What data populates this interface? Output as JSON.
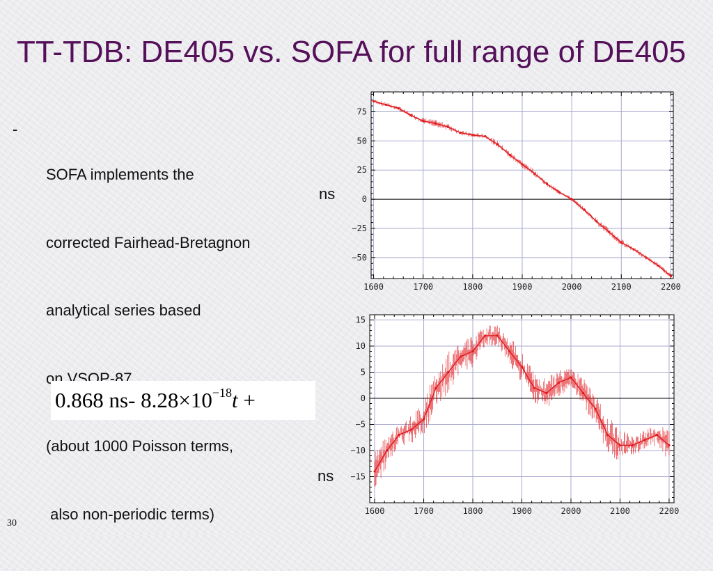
{
  "slide": {
    "title": "TT-TDB: DE405 vs. SOFA for full range of DE405",
    "bullet_marker": "-",
    "bullet_lines": [
      "SOFA implements the",
      "corrected Fairhead-Bretagnon",
      "analytical series based",
      "on VSOP-87",
      "(about 1000 Poisson terms,",
      " also non-periodic terms)"
    ],
    "formula": {
      "coef1": "0.868",
      "unit": "ns",
      "minus": "-",
      "coef2": "8.28",
      "times": "×10",
      "exponent": "−18",
      "variable": "t",
      "plus": "+"
    },
    "slide_number": "30"
  },
  "colors": {
    "title": "#55105a",
    "series": "#e0181d",
    "grid": "#a9a9cf",
    "plot_bg": "#ffffff"
  },
  "chart_data": [
    {
      "type": "line",
      "ylabel": "ns",
      "xlim": [
        1595,
        2205
      ],
      "ylim": [
        -68,
        92
      ],
      "x_ticks": [
        1600,
        1700,
        1800,
        1900,
        2000,
        2100,
        2200
      ],
      "y_ticks": [
        75,
        50,
        25,
        0,
        -25,
        -50
      ],
      "y_tick_labels": [
        "75",
        "50",
        "25",
        "0",
        "−25",
        "−50"
      ],
      "x_grid": [
        1600,
        1700,
        1800,
        1900,
        2000,
        2100,
        2200
      ],
      "y_grid": [
        75,
        50,
        25,
        -25,
        -50
      ],
      "zero_line": 0,
      "grid": true,
      "series": [
        {
          "x": [
            1600,
            1625,
            1650,
            1675,
            1700,
            1725,
            1750,
            1775,
            1800,
            1825,
            1850,
            1875,
            1900,
            1925,
            1950,
            1975,
            2000,
            2025,
            2050,
            2075,
            2100,
            2125,
            2150,
            2175,
            2200
          ],
          "y": [
            84,
            81,
            78,
            72,
            67,
            65,
            62,
            57,
            55,
            54,
            47,
            38,
            30,
            22,
            13,
            6,
            0,
            -9,
            -19,
            -28,
            -37,
            -43,
            -50,
            -57,
            -66
          ],
          "band": [
            2,
            2,
            2,
            2,
            3,
            3,
            3,
            2,
            2,
            2,
            3,
            3,
            3,
            3,
            2,
            2,
            2,
            2,
            3,
            3,
            3,
            2,
            2,
            2,
            2
          ]
        }
      ]
    },
    {
      "type": "line",
      "ylabel": "ns",
      "xlim": [
        1590,
        2210
      ],
      "ylim": [
        -20,
        16
      ],
      "x_ticks": [
        1600,
        1700,
        1800,
        1900,
        2000,
        2100,
        2200
      ],
      "y_ticks": [
        15,
        10,
        5,
        0,
        -5,
        -10,
        -15
      ],
      "y_tick_labels": [
        "15",
        "10",
        "5",
        "0",
        "−5",
        "−10",
        "−15"
      ],
      "x_grid": [
        1600,
        1700,
        1800,
        1900,
        2000,
        2100,
        2200
      ],
      "y_grid": [
        15,
        10,
        5,
        -5,
        -10,
        -15
      ],
      "zero_line": 0,
      "grid": true,
      "series": [
        {
          "x": [
            1600,
            1625,
            1650,
            1675,
            1700,
            1725,
            1750,
            1775,
            1800,
            1825,
            1850,
            1875,
            1900,
            1925,
            1950,
            1975,
            2000,
            2025,
            2050,
            2075,
            2100,
            2125,
            2150,
            2175,
            2200
          ],
          "y": [
            -14,
            -10,
            -7,
            -6,
            -4,
            2,
            5,
            8,
            9,
            12,
            12,
            9,
            6,
            2,
            1,
            3,
            4,
            1,
            -2,
            -7,
            -9,
            -9,
            -8,
            -7,
            -9
          ],
          "band": [
            4,
            3,
            2,
            3,
            3,
            4,
            4,
            3,
            3,
            2,
            2,
            3,
            3,
            3,
            3,
            3,
            2,
            3,
            3,
            4,
            3,
            2,
            2,
            2,
            3
          ]
        }
      ]
    }
  ]
}
